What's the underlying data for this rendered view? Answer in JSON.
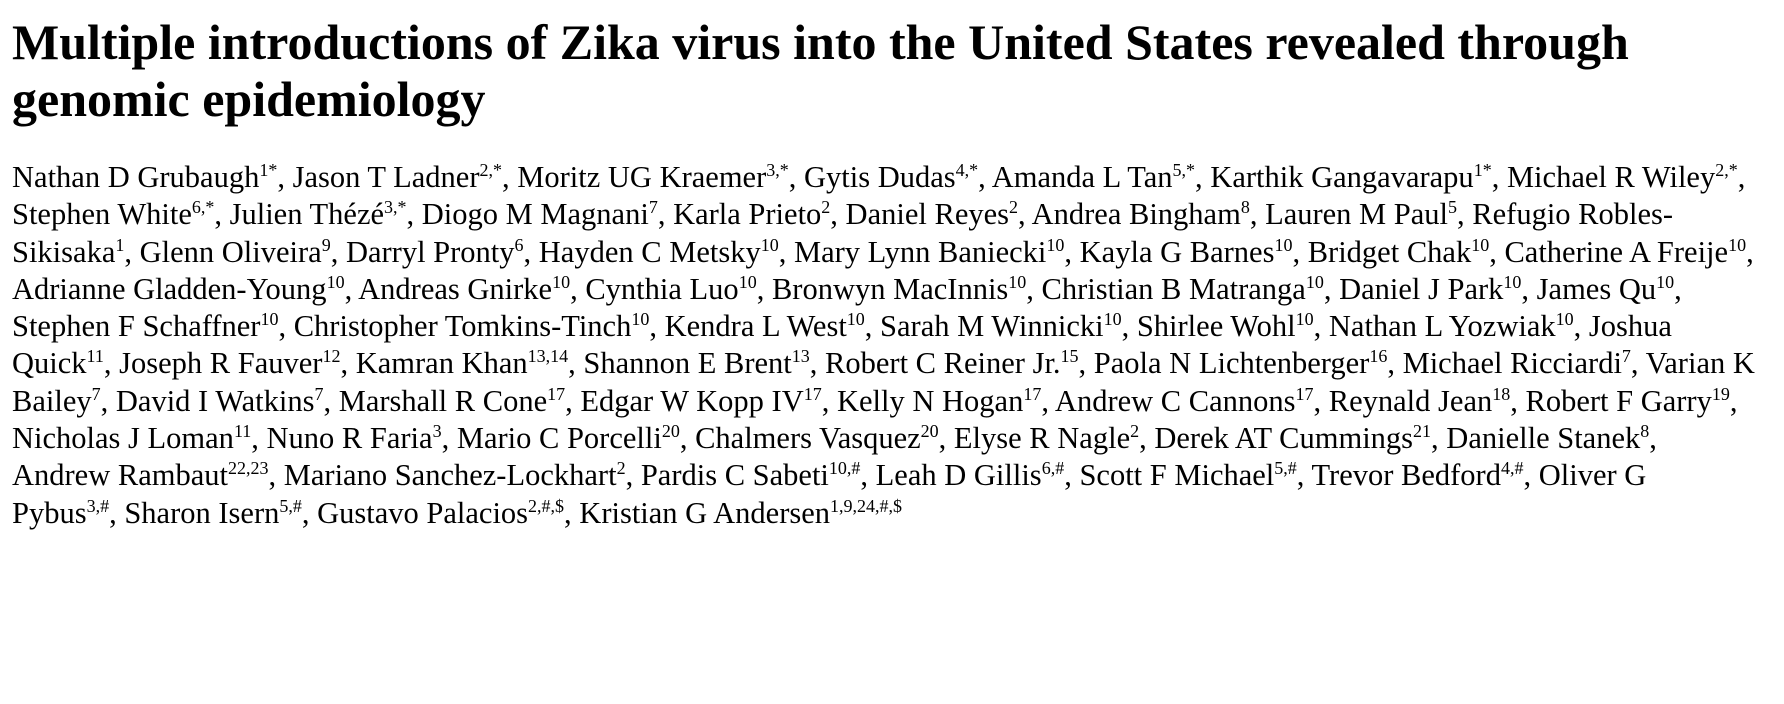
{
  "paper": {
    "title": "Multiple introductions of Zika virus into the United States revealed through genomic epidemiology",
    "authors": [
      {
        "name": "Nathan D Grubaugh",
        "aff": "1*"
      },
      {
        "name": "Jason T Ladner",
        "aff": "2,*"
      },
      {
        "name": "Moritz UG Kraemer",
        "aff": "3,*"
      },
      {
        "name": "Gytis Dudas",
        "aff": "4,*"
      },
      {
        "name": "Amanda L Tan",
        "aff": "5,*"
      },
      {
        "name": "Karthik Gangavarapu",
        "aff": "1*"
      },
      {
        "name": "Michael R Wiley",
        "aff": "2,*"
      },
      {
        "name": "Stephen White",
        "aff": "6,*"
      },
      {
        "name": "Julien Thézé",
        "aff": "3,*"
      },
      {
        "name": "Diogo M Magnani",
        "aff": "7"
      },
      {
        "name": "Karla Prieto",
        "aff": "2"
      },
      {
        "name": "Daniel Reyes",
        "aff": "2"
      },
      {
        "name": "Andrea Bingham",
        "aff": "8"
      },
      {
        "name": "Lauren M Paul",
        "aff": "5"
      },
      {
        "name": "Refugio Robles-Sikisaka",
        "aff": "1"
      },
      {
        "name": "Glenn Oliveira",
        "aff": "9"
      },
      {
        "name": "Darryl Pronty",
        "aff": "6"
      },
      {
        "name": "Hayden C Metsky",
        "aff": "10"
      },
      {
        "name": "Mary Lynn Baniecki",
        "aff": "10"
      },
      {
        "name": "Kayla G Barnes",
        "aff": "10"
      },
      {
        "name": "Bridget Chak",
        "aff": "10"
      },
      {
        "name": "Catherine A Freije",
        "aff": "10"
      },
      {
        "name": "Adrianne Gladden-Young",
        "aff": "10"
      },
      {
        "name": "Andreas Gnirke",
        "aff": "10"
      },
      {
        "name": "Cynthia Luo",
        "aff": "10"
      },
      {
        "name": "Bronwyn MacInnis",
        "aff": "10"
      },
      {
        "name": "Christian B Matranga",
        "aff": "10"
      },
      {
        "name": "Daniel J Park",
        "aff": "10"
      },
      {
        "name": "James Qu",
        "aff": "10"
      },
      {
        "name": "Stephen F Schaffner",
        "aff": "10"
      },
      {
        "name": "Christopher Tomkins-Tinch",
        "aff": "10"
      },
      {
        "name": "Kendra L West",
        "aff": "10"
      },
      {
        "name": "Sarah M Winnicki",
        "aff": "10"
      },
      {
        "name": "Shirlee Wohl",
        "aff": "10"
      },
      {
        "name": "Nathan L Yozwiak",
        "aff": "10"
      },
      {
        "name": "Joshua Quick",
        "aff": "11"
      },
      {
        "name": "Joseph R Fauver",
        "aff": "12"
      },
      {
        "name": "Kamran Khan",
        "aff": "13,14"
      },
      {
        "name": "Shannon E Brent",
        "aff": "13"
      },
      {
        "name": "Robert C Reiner Jr.",
        "aff": "15"
      },
      {
        "name": "Paola N Lichtenberger",
        "aff": "16"
      },
      {
        "name": "Michael Ricciardi",
        "aff": "7"
      },
      {
        "name": "Varian K Bailey",
        "aff": "7"
      },
      {
        "name": "David I Watkins",
        "aff": "7"
      },
      {
        "name": "Marshall R Cone",
        "aff": "17"
      },
      {
        "name": "Edgar W Kopp IV",
        "aff": "17"
      },
      {
        "name": "Kelly N Hogan",
        "aff": "17"
      },
      {
        "name": "Andrew C Cannons",
        "aff": "17"
      },
      {
        "name": "Reynald Jean",
        "aff": "18"
      },
      {
        "name": "Robert F Garry",
        "aff": "19"
      },
      {
        "name": "Nicholas J Loman",
        "aff": "11"
      },
      {
        "name": "Nuno R Faria",
        "aff": "3"
      },
      {
        "name": "Mario C Porcelli",
        "aff": "20"
      },
      {
        "name": "Chalmers Vasquez",
        "aff": "20"
      },
      {
        "name": "Elyse R Nagle",
        "aff": "2"
      },
      {
        "name": "Derek AT Cummings",
        "aff": "21"
      },
      {
        "name": "Danielle Stanek",
        "aff": "8"
      },
      {
        "name": "Andrew Rambaut",
        "aff": "22,23"
      },
      {
        "name": "Mariano Sanchez-Lockhart",
        "aff": "2"
      },
      {
        "name": "Pardis C Sabeti",
        "aff": "10,#"
      },
      {
        "name": "Leah D Gillis",
        "aff": "6,#"
      },
      {
        "name": "Scott F Michael",
        "aff": "5,#"
      },
      {
        "name": "Trevor Bedford",
        "aff": "4,#"
      },
      {
        "name": "Oliver G Pybus",
        "aff": "3,#"
      },
      {
        "name": "Sharon Isern",
        "aff": "5,#"
      },
      {
        "name": "Gustavo Palacios",
        "aff": "2,#,$"
      },
      {
        "name": "Kristian G Andersen",
        "aff": "1,9,24,#,$"
      }
    ]
  }
}
